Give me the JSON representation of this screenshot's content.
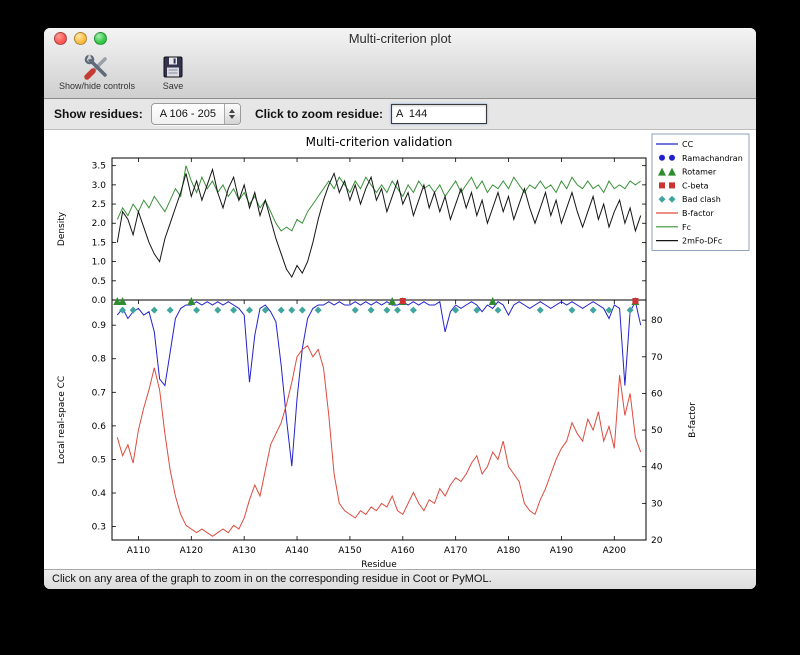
{
  "window": {
    "title": "Multi-criterion plot"
  },
  "toolbar": {
    "show_hide_label": "Show/hide controls",
    "save_label": "Save"
  },
  "controls": {
    "show_residues_label": "Show residues:",
    "residue_range_value": "A 106 - 205",
    "zoom_residue_label": "Click to zoom residue:",
    "zoom_residue_value": "A  144"
  },
  "status": {
    "message": "Click on any area of the graph to zoom in on the corresponding residue in Coot or PyMOL."
  },
  "chart_data": {
    "type": "line",
    "title": "Multi-criterion validation",
    "xlabel": "Residue",
    "xlim": [
      105,
      206
    ],
    "x_start": 106,
    "xticks": [
      110,
      120,
      130,
      140,
      150,
      160,
      170,
      180,
      190,
      200
    ],
    "xtick_labels": [
      "A110",
      "A120",
      "A130",
      "A140",
      "A150",
      "A160",
      "A170",
      "A180",
      "A190",
      "A200"
    ],
    "top_panel": {
      "ylabel": "Density",
      "ylim": [
        0,
        3.7
      ],
      "yticks": [
        0.0,
        0.5,
        1.0,
        1.5,
        2.0,
        2.5,
        3.0,
        3.5
      ],
      "series": [
        {
          "name": "Fc",
          "color": "#3a913a",
          "values": [
            2.1,
            2.4,
            2.2,
            2.5,
            2.3,
            2.6,
            2.4,
            2.7,
            2.5,
            2.3,
            2.6,
            2.9,
            2.7,
            3.5,
            3.1,
            2.8,
            3.2,
            2.9,
            3.1,
            2.8,
            3.0,
            2.7,
            2.9,
            2.6,
            2.8,
            2.5,
            2.7,
            2.4,
            2.6,
            2.3,
            2.0,
            1.8,
            1.9,
            1.8,
            2.1,
            2.0,
            2.3,
            2.5,
            2.7,
            2.9,
            3.1,
            2.9,
            3.2,
            3.0,
            2.8,
            3.1,
            2.9,
            3.2,
            3.0,
            2.8,
            3.0,
            2.8,
            3.1,
            2.9,
            2.7,
            3.0,
            2.8,
            3.1,
            2.9,
            3.0,
            2.8,
            3.0,
            2.7,
            2.9,
            3.1,
            2.8,
            3.0,
            3.2,
            2.9,
            3.1,
            2.8,
            3.0,
            2.9,
            3.1,
            2.9,
            3.2,
            3.0,
            2.8,
            3.0,
            2.9,
            3.1,
            2.9,
            3.0,
            2.8,
            3.1,
            2.9,
            3.2,
            3.0,
            2.9,
            3.1,
            2.9,
            3.0,
            2.8,
            3.1,
            2.9,
            3.0,
            2.9,
            3.1,
            3.0,
            3.1
          ]
        },
        {
          "name": "2mFo-DFc",
          "color": "#151515",
          "values": [
            1.5,
            2.3,
            2.1,
            1.7,
            2.3,
            1.9,
            1.5,
            1.2,
            1.0,
            1.6,
            2.0,
            2.4,
            2.8,
            3.3,
            2.7,
            3.1,
            2.6,
            3.0,
            3.4,
            2.8,
            2.4,
            2.9,
            3.2,
            2.6,
            3.0,
            2.4,
            2.8,
            2.2,
            2.6,
            2.1,
            1.6,
            1.2,
            0.8,
            0.6,
            0.9,
            0.7,
            1.0,
            1.5,
            2.1,
            2.6,
            3.0,
            3.3,
            2.8,
            3.1,
            2.6,
            3.0,
            2.5,
            2.9,
            3.2,
            2.6,
            2.9,
            2.3,
            2.7,
            3.1,
            2.5,
            2.8,
            2.2,
            2.6,
            3.0,
            2.4,
            2.8,
            2.3,
            2.7,
            2.1,
            2.5,
            2.9,
            2.4,
            2.8,
            2.2,
            2.6,
            2.0,
            2.4,
            2.8,
            2.3,
            2.7,
            2.1,
            2.5,
            2.9,
            2.4,
            2.0,
            2.4,
            2.8,
            2.2,
            2.6,
            2.0,
            2.4,
            2.8,
            2.3,
            1.9,
            2.3,
            2.7,
            2.1,
            2.5,
            1.9,
            2.3,
            2.6,
            2.0,
            2.4,
            1.8,
            2.2
          ]
        }
      ]
    },
    "bottom_panel": {
      "ylabel_left": "Local real-space CC",
      "ylabel_left_color": "#2222cc",
      "ylim_left": [
        0.26,
        0.975
      ],
      "yticks_left": [
        0.3,
        0.4,
        0.5,
        0.6,
        0.7,
        0.8,
        0.9
      ],
      "ylabel_right": "B-factor",
      "ylabel_right_color": "#dd4b3e",
      "ylim_right": [
        20,
        85.5
      ],
      "yticks_right": [
        20,
        30,
        40,
        50,
        60,
        70,
        80
      ],
      "series": [
        {
          "name": "CC",
          "axis": "left",
          "color": "#2222cc",
          "values": [
            0.93,
            0.95,
            0.92,
            0.94,
            0.95,
            0.93,
            0.94,
            0.88,
            0.74,
            0.72,
            0.82,
            0.92,
            0.95,
            0.96,
            0.96,
            0.97,
            0.96,
            0.97,
            0.96,
            0.97,
            0.96,
            0.97,
            0.96,
            0.95,
            0.93,
            0.73,
            0.87,
            0.95,
            0.96,
            0.94,
            0.91,
            0.78,
            0.62,
            0.48,
            0.68,
            0.83,
            0.92,
            0.95,
            0.96,
            0.96,
            0.97,
            0.96,
            0.97,
            0.96,
            0.96,
            0.97,
            0.96,
            0.97,
            0.96,
            0.97,
            0.96,
            0.97,
            0.96,
            0.96,
            0.97,
            0.96,
            0.97,
            0.96,
            0.97,
            0.96,
            0.96,
            0.97,
            0.88,
            0.94,
            0.96,
            0.95,
            0.96,
            0.97,
            0.96,
            0.94,
            0.96,
            0.95,
            0.97,
            0.96,
            0.93,
            0.96,
            0.97,
            0.96,
            0.95,
            0.96,
            0.97,
            0.96,
            0.95,
            0.96,
            0.97,
            0.96,
            0.97,
            0.96,
            0.95,
            0.96,
            0.97,
            0.96,
            0.95,
            0.92,
            0.96,
            0.95,
            0.72,
            0.94,
            0.97,
            0.9
          ]
        },
        {
          "name": "B-factor",
          "axis": "right",
          "color": "#dd4b3e",
          "values": [
            48,
            43,
            46,
            41,
            50,
            56,
            61,
            67,
            61,
            49,
            39,
            32,
            27,
            24,
            23,
            22,
            23,
            22,
            21,
            22,
            23,
            22,
            24,
            23,
            26,
            31,
            35,
            32,
            39,
            46,
            49,
            52,
            57,
            63,
            70,
            72,
            73,
            70,
            72,
            67,
            54,
            38,
            30,
            28,
            27,
            26,
            28,
            27,
            29,
            28,
            30,
            29,
            32,
            28,
            27,
            30,
            33,
            30,
            28,
            31,
            30,
            34,
            32,
            35,
            37,
            36,
            38,
            41,
            43,
            38,
            40,
            44,
            42,
            47,
            40,
            38,
            36,
            30,
            28,
            27,
            31,
            34,
            38,
            42,
            45,
            47,
            52,
            49,
            47,
            53,
            50,
            55,
            47,
            51,
            45,
            65,
            54,
            60,
            48,
            44
          ]
        }
      ],
      "markers": [
        {
          "name": "Ramachandran",
          "shape": "circle",
          "color": "#2222cc",
          "y": 0.945,
          "residues": []
        },
        {
          "name": "Rotamer",
          "shape": "triangle",
          "color": "#2f8b2f",
          "y": 0.972,
          "residues": [
            106,
            107,
            120,
            158,
            160,
            177,
            204
          ]
        },
        {
          "name": "C-beta",
          "shape": "square",
          "color": "#cc3333",
          "y": 0.972,
          "residues": [
            160,
            204
          ]
        },
        {
          "name": "Bad clash",
          "shape": "diamond",
          "color": "#3fa69e",
          "y": 0.945,
          "residues": [
            107,
            109,
            113,
            116,
            121,
            125,
            128,
            131,
            134,
            137,
            139,
            141,
            144,
            151,
            154,
            157,
            159,
            162,
            170,
            174,
            178,
            186,
            192,
            196,
            199,
            203
          ]
        }
      ]
    },
    "legend": [
      {
        "label": "CC",
        "type": "line",
        "color": "#2222cc"
      },
      {
        "label": "Ramachandran",
        "type": "circle",
        "color": "#2222cc"
      },
      {
        "label": "Rotamer",
        "type": "triangle",
        "color": "#2f8b2f"
      },
      {
        "label": "C-beta",
        "type": "square",
        "color": "#cc3333"
      },
      {
        "label": "Bad clash",
        "type": "diamond",
        "color": "#3fa69e"
      },
      {
        "label": "B-factor",
        "type": "line",
        "color": "#dd4b3e"
      },
      {
        "label": "Fc",
        "type": "line",
        "color": "#3a913a"
      },
      {
        "label": "2mFo-DFc",
        "type": "line",
        "color": "#151515"
      }
    ]
  }
}
